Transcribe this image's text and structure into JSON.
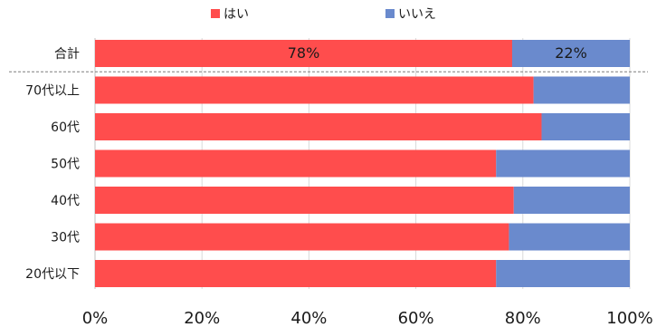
{
  "chart_data": {
    "type": "bar",
    "orientation": "horizontal",
    "stacked": true,
    "legend_placement": "top",
    "categories": [
      "合計",
      "70代以上",
      "60代",
      "50代",
      "40代",
      "30代",
      "20代以下"
    ],
    "series": [
      {
        "name": "はい",
        "color": "#ff4d4d",
        "values": [
          78,
          82,
          83.5,
          75,
          78.3,
          77.4,
          75
        ]
      },
      {
        "name": "いいえ",
        "color": "#6a8acd",
        "values": [
          22,
          18,
          16.5,
          25,
          21.7,
          22.6,
          25
        ]
      }
    ],
    "data_labels": [
      {
        "category": "合計",
        "series": "はい",
        "text": "78%"
      },
      {
        "category": "合計",
        "series": "いいえ",
        "text": "22%"
      }
    ],
    "xlim": [
      0,
      100
    ],
    "x_ticks": [
      "0%",
      "20%",
      "40%",
      "60%",
      "80%",
      "100%"
    ],
    "separator_after_category": "合計",
    "grid": true
  }
}
